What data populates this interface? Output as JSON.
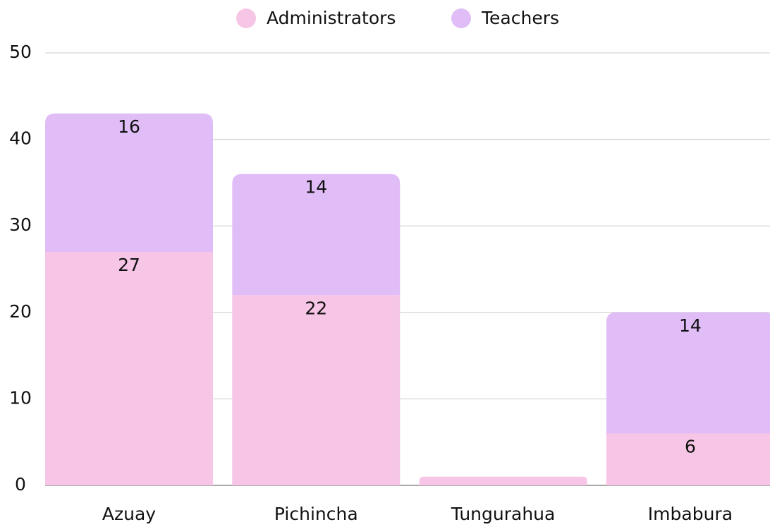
{
  "chart_data": {
    "type": "stacked_bar",
    "categories": [
      "Azuay",
      "Pichincha",
      "Tungurahua",
      "Imbabura"
    ],
    "series": [
      {
        "name": "Administrators",
        "color": "#f7c5e5",
        "values": [
          27,
          22,
          1,
          6
        ],
        "value_labels": [
          "27",
          "22",
          null,
          "6"
        ]
      },
      {
        "name": "Teachers",
        "color": "#e1bdf7",
        "values": [
          16,
          14,
          0,
          14
        ],
        "value_labels": [
          "16",
          "14",
          null,
          "14"
        ]
      }
    ],
    "ylim": [
      0,
      50
    ],
    "yticks": [
      0,
      10,
      20,
      30,
      40,
      50
    ],
    "grid": true,
    "legend": "top"
  }
}
